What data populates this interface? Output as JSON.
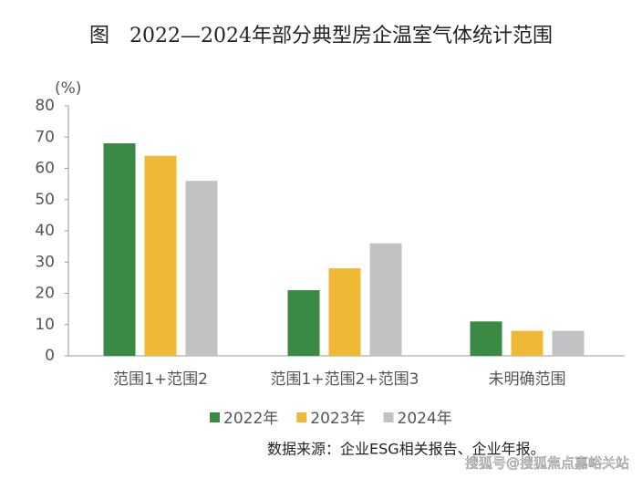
{
  "chart_data": {
    "type": "bar",
    "title": "图　2022—2024年部分典型房企温室气体统计范围",
    "y_label": "(%)",
    "categories": [
      "范围1+范围2",
      "范围1+范围2+范围3",
      "未明确范围"
    ],
    "series": [
      {
        "name": "2022年",
        "color": "#3a8944",
        "values": [
          68,
          21,
          11
        ]
      },
      {
        "name": "2023年",
        "color": "#efb935",
        "values": [
          64,
          28,
          8
        ]
      },
      {
        "name": "2024年",
        "color": "#c2c2c4",
        "values": [
          56,
          36,
          8
        ]
      }
    ],
    "ylim": [
      0,
      80
    ],
    "yticks": [
      0,
      10,
      20,
      30,
      40,
      50,
      60,
      70,
      80
    ],
    "grid": false,
    "legend": "bottom",
    "source": "数据来源：企业ESG相关报告、企业年报。",
    "watermark": "搜狐号@搜狐焦点嘉峪关站"
  }
}
